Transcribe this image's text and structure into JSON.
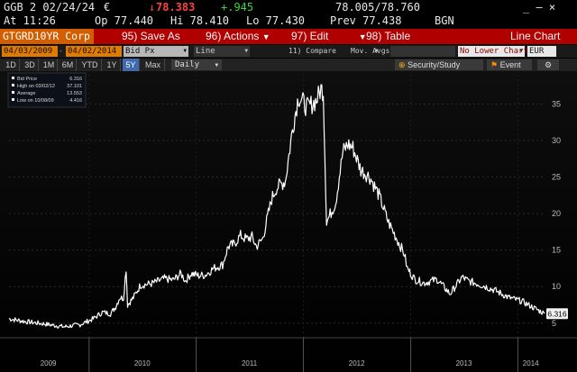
{
  "quote": {
    "ticker": "GGB 2 02/24/24",
    "currency": "€",
    "last_arrow": "↓",
    "last": "78.383",
    "change": "+.945",
    "bid_ask": "78.005/78.760",
    "menu_icons": "_ – ×",
    "time": "At 11:26",
    "open": "Op 77.440",
    "high": "Hi 78.410",
    "low": "Lo 77.430",
    "prev": "Prev 77.438",
    "source": "BGN"
  },
  "titlebar": {
    "security": "GTGRD10YR Corp",
    "save": "95) Save As",
    "actions": "96) Actions",
    "edit": "97) Edit",
    "table": "98) Table",
    "chart_type": "Line Chart",
    "dropdown_arrow": "▼"
  },
  "params": {
    "start_date": "04/03/2009",
    "end_date": "04/02/2014",
    "field": "Bid Px",
    "style": "Line",
    "compare": "11) Compare",
    "mov_avgs": "Mov. Avgs",
    "lower_chart": "No Lower Chart",
    "currency": "EUR"
  },
  "periods": [
    "1D",
    "3D",
    "1M",
    "6M",
    "YTD",
    "1Y",
    "5Y",
    "Max"
  ],
  "active_period": "5Y",
  "frequency": "Daily",
  "buttons": {
    "security_study": "Security/Study",
    "event": "Event"
  },
  "legend": {
    "rows": [
      {
        "label": "Bid Price",
        "value": "6.316"
      },
      {
        "label": "High on 03/02/12",
        "value": "37.101"
      },
      {
        "label": "Average",
        "value": "13.553"
      },
      {
        "label": "Low on 10/08/09",
        "value": "4.416"
      }
    ]
  },
  "colors": {
    "background": "#000000",
    "line": "#ffffff",
    "title_bar": "#b00000",
    "security_field": "#d35e00",
    "price_down": "#ff4040",
    "price_up": "#3fd43f"
  },
  "chart_data": {
    "type": "line",
    "title": "",
    "xlabel": "",
    "ylabel": "",
    "ylim": [
      3,
      39
    ],
    "y_ticks": [
      5,
      10,
      15,
      20,
      25,
      30,
      35
    ],
    "x_tick_labels": [
      "2009",
      "2010",
      "2011",
      "2012",
      "2013",
      "2014"
    ],
    "x_range": [
      "2009-04-03",
      "2014-04-02"
    ],
    "grid": true,
    "last_value_label": "6.316",
    "series": [
      {
        "name": "Bid Price",
        "x": [
          "2009-04-03",
          "2009-06-01",
          "2009-08-01",
          "2009-10-08",
          "2009-12-01",
          "2010-01-15",
          "2010-02-15",
          "2010-03-15",
          "2010-04-01",
          "2010-04-15",
          "2010-04-28",
          "2010-05-07",
          "2010-05-12",
          "2010-06-01",
          "2010-06-25",
          "2010-08-01",
          "2010-09-15",
          "2010-10-15",
          "2010-11-10",
          "2010-11-25",
          "2010-12-15",
          "2011-01-10",
          "2011-02-01",
          "2011-03-01",
          "2011-04-01",
          "2011-04-20",
          "2011-05-10",
          "2011-06-01",
          "2011-06-20",
          "2011-07-10",
          "2011-07-25",
          "2011-08-15",
          "2011-09-01",
          "2011-09-15",
          "2011-10-01",
          "2011-11-01",
          "2011-11-25",
          "2011-12-15",
          "2012-01-15",
          "2012-02-15",
          "2012-03-01",
          "2012-03-09",
          "2012-03-20",
          "2012-04-20",
          "2012-05-15",
          "2012-06-01",
          "2012-06-18",
          "2012-07-15",
          "2012-08-15",
          "2012-09-15",
          "2012-10-15",
          "2012-11-15",
          "2012-12-10",
          "2012-12-20",
          "2013-01-15",
          "2013-02-15",
          "2013-04-01",
          "2013-05-15",
          "2013-06-25",
          "2013-07-15",
          "2013-09-01",
          "2013-10-15",
          "2013-12-01",
          "2014-01-15",
          "2014-03-01",
          "2014-04-02"
        ],
        "y": [
          5.6,
          5.2,
          4.9,
          4.5,
          4.8,
          5.6,
          6.5,
          6.3,
          7.2,
          8.5,
          8.4,
          12.5,
          7.5,
          8.5,
          10.2,
          10.4,
          11.1,
          10.9,
          11.8,
          10.8,
          11.8,
          11.5,
          11.6,
          12.5,
          13.0,
          15.5,
          15.8,
          17.0,
          16.5,
          16.8,
          15.5,
          16.5,
          19.5,
          22.0,
          23.5,
          24.5,
          31.5,
          36.0,
          34.5,
          35.5,
          37.1,
          36.8,
          18.8,
          21.5,
          28.5,
          29.5,
          29.0,
          26.0,
          25.0,
          22.5,
          19.0,
          16.5,
          14.5,
          12.5,
          11.0,
          10.5,
          11.0,
          9.0,
          11.3,
          10.8,
          10.2,
          9.5,
          8.5,
          8.0,
          7.0,
          6.3
        ]
      }
    ]
  }
}
